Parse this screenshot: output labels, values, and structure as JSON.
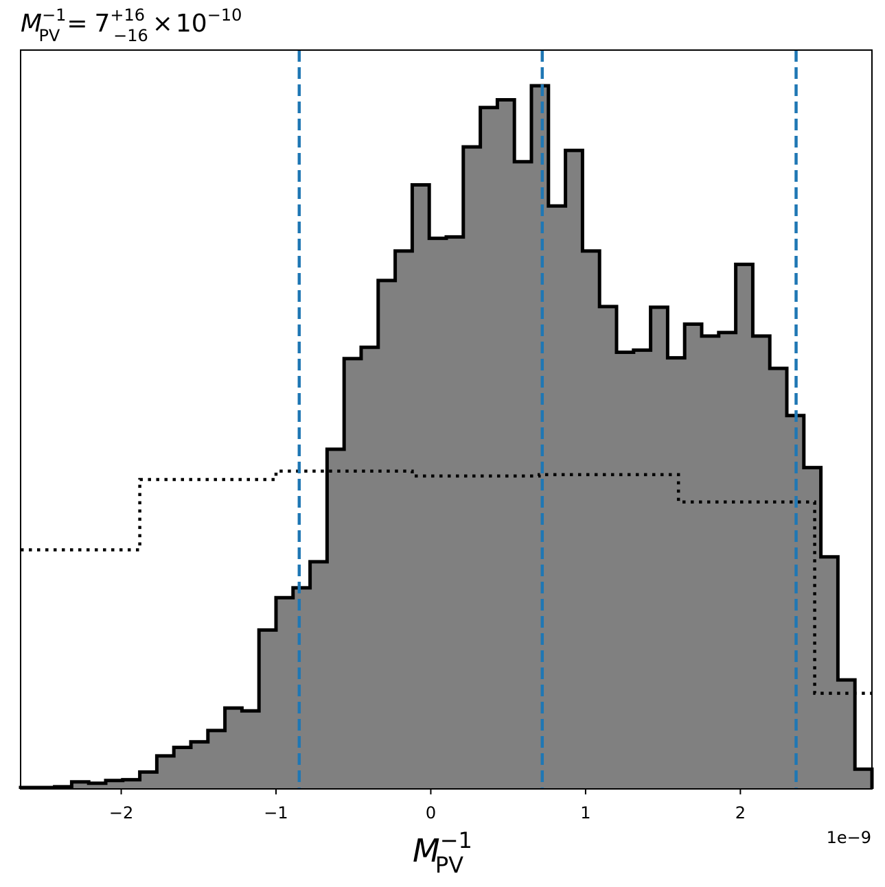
{
  "chart_data": {
    "type": "bar",
    "title": {
      "symbol": "M",
      "symbol_sub": "PV",
      "symbol_sup": "−1",
      "equals": "=",
      "value": "7",
      "upper": "+16",
      "lower": "−16",
      "times": "×",
      "base": "10",
      "exponent": "−10"
    },
    "xlabel": {
      "symbol": "M",
      "sub": "PV",
      "sup": "−1"
    },
    "offset_label": "1e−9",
    "xlim": [
      -2.65,
      2.85
    ],
    "ylim": [
      0,
      1
    ],
    "xticks": [
      {
        "value": -2,
        "label": "−2"
      },
      {
        "value": -1,
        "label": "−1"
      },
      {
        "value": 0,
        "label": "0"
      },
      {
        "value": 1,
        "label": "1"
      },
      {
        "value": 2,
        "label": "2"
      }
    ],
    "histogram": {
      "bin_edges": [
        -2.65,
        -2.54,
        -2.43,
        -2.32,
        -2.21,
        -2.1,
        -1.99,
        -1.88,
        -1.77,
        -1.66,
        -1.55,
        -1.44,
        -1.33,
        -1.22,
        -1.11,
        -1.0,
        -0.89,
        -0.78,
        -0.67,
        -0.56,
        -0.45,
        -0.34,
        -0.23,
        -0.12,
        -0.01,
        0.1,
        0.21,
        0.32,
        0.43,
        0.54,
        0.65,
        0.76,
        0.87,
        0.98,
        1.09,
        1.2,
        1.31,
        1.42,
        1.53,
        1.64,
        1.75,
        1.86,
        1.97,
        2.08,
        2.19,
        2.3,
        2.41,
        2.52,
        2.63,
        2.74,
        2.85
      ],
      "counts": [
        0.002,
        0.002,
        0.003,
        0.01,
        0.008,
        0.012,
        0.013,
        0.024,
        0.047,
        0.059,
        0.067,
        0.083,
        0.115,
        0.111,
        0.226,
        0.272,
        0.286,
        0.323,
        0.483,
        0.612,
        0.628,
        0.723,
        0.765,
        0.859,
        0.783,
        0.785,
        0.913,
        0.969,
        0.98,
        0.892,
        1.0,
        0.829,
        0.908,
        0.765,
        0.686,
        0.621,
        0.624,
        0.685,
        0.613,
        0.661,
        0.644,
        0.649,
        0.746,
        0.644,
        0.598,
        0.531,
        0.457,
        0.33,
        0.155,
        0.028
      ],
      "fill_color": "#808080",
      "edge_color": "#000000"
    },
    "prior": {
      "bin_edges": [
        -2.65,
        -1.88,
        -1.0,
        -0.12,
        0.7,
        1.6,
        2.48,
        2.85
      ],
      "values": [
        0.34,
        0.44,
        0.452,
        0.445,
        0.447,
        0.408,
        0.136
      ],
      "style": "dotted",
      "color": "#000000"
    },
    "quantile_lines": {
      "values": [
        -0.85,
        0.72,
        2.36
      ],
      "style": "dashed",
      "color": "#1f77b4"
    },
    "grid": false,
    "legend": false
  }
}
